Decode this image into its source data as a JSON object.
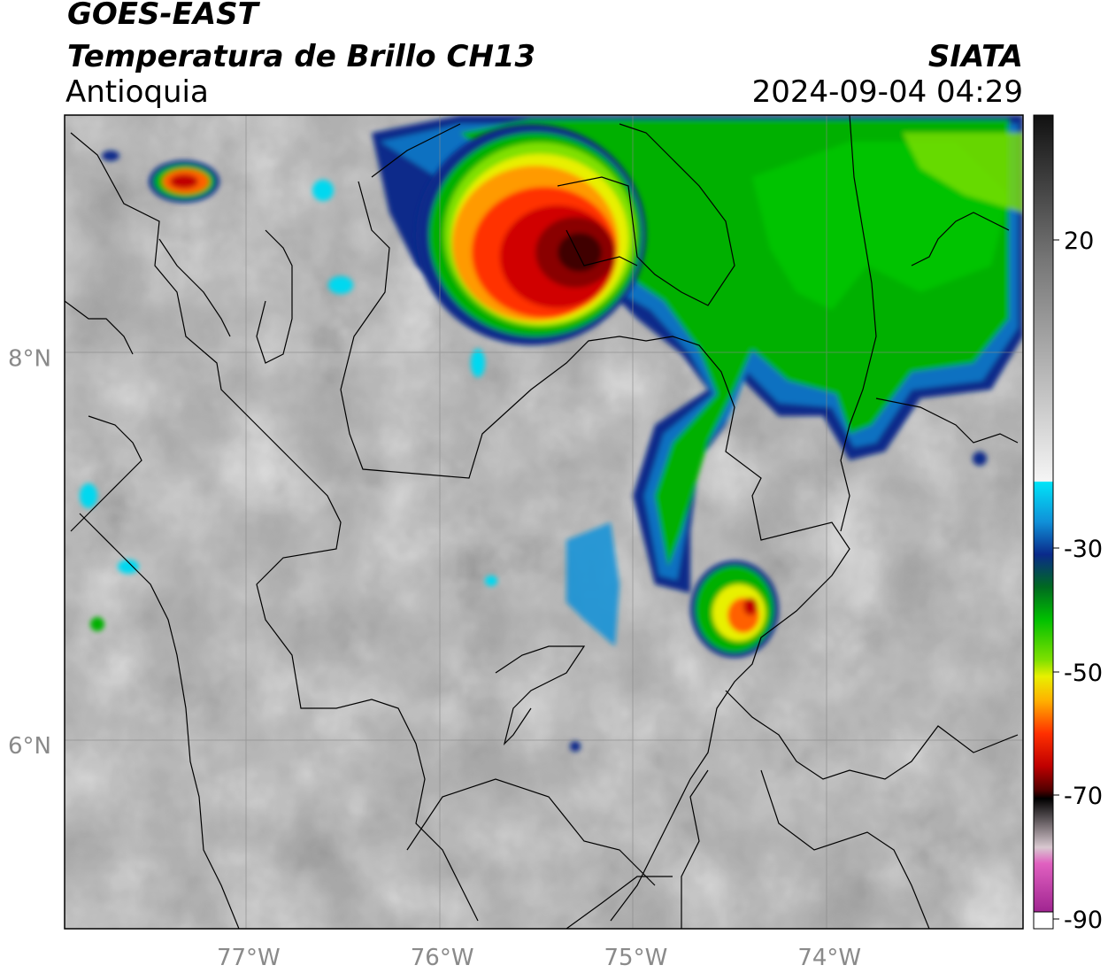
{
  "header": {
    "satellite": "GOES-EAST",
    "product": "Temperatura de Brillo CH13",
    "region": "Antioquia",
    "organization": "SIATA",
    "datetime": "2024-09-04 04:29"
  },
  "map": {
    "lon_range": [
      -77.95,
      -73.0
    ],
    "lat_range": [
      5.05,
      9.25
    ],
    "lon_ticks": [
      {
        "value": -77,
        "label": "77°W"
      },
      {
        "value": -76,
        "label": "76°W"
      },
      {
        "value": -75,
        "label": "75°W"
      },
      {
        "value": -74,
        "label": "74°W"
      }
    ],
    "lat_ticks": [
      {
        "value": 8,
        "label": "8°N"
      },
      {
        "value": 6,
        "label": "6°N"
      }
    ],
    "gridlines": true,
    "background": "grayscale warm cloud tops",
    "cold_cloud_systems": [
      {
        "name": "northern-mcs",
        "lon": -75.5,
        "lat": 8.6,
        "min_temp": -75
      },
      {
        "name": "northeast-band",
        "lon": -74.5,
        "lat": 8.2,
        "min_temp": -45
      },
      {
        "name": "eastern-cell",
        "lon": -74.5,
        "lat": 6.6,
        "min_temp": -60
      },
      {
        "name": "northwest-cell",
        "lon": -77.4,
        "lat": 9.1,
        "min_temp": -60
      }
    ]
  },
  "colorbar": {
    "ticks": [
      {
        "value": 20,
        "label": "20"
      },
      {
        "value": -30,
        "label": "-30"
      },
      {
        "value": -50,
        "label": "-50"
      },
      {
        "value": -70,
        "label": "-70"
      },
      {
        "value": -90,
        "label": "-90"
      }
    ],
    "colors": {
      "warm_top": "#1a1a1a",
      "warm_mid": "#9a9a9a",
      "warm_low": "#f2f2f2",
      "cyan": "#00d8f0",
      "blue": "#0a2a8a",
      "green": "#00c000",
      "yellow": "#e8f000",
      "orange": "#ff8c00",
      "red": "#e00000",
      "darkred": "#700000",
      "black": "#000000",
      "pink": "#e060c0",
      "purple": "#8a1080"
    }
  }
}
